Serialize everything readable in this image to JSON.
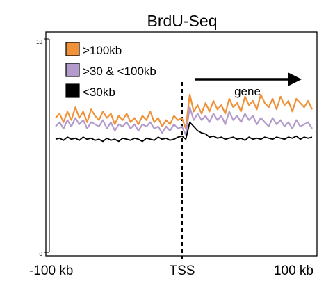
{
  "chart_data": {
    "type": "line",
    "title": "BrdU-Seq",
    "xlabel": "",
    "ylabel": "",
    "xlim": [
      -100,
      100
    ],
    "ylim": [
      0,
      10
    ],
    "y_ticks": [
      "0",
      "10"
    ],
    "x_tick_labels": {
      "left": "-100 kb",
      "center": "TSS",
      "right": "100 kb"
    },
    "grid": false,
    "legend_position": "top-left",
    "series": [
      {
        "name": ">100kb",
        "color": "#f0923a",
        "values": [
          6.3,
          6.5,
          6.1,
          6.6,
          6.2,
          6.8,
          6.3,
          6.6,
          6.1,
          6.7,
          6.4,
          6.2,
          6.6,
          6.3,
          6.5,
          6.0,
          6.4,
          6.2,
          6.5,
          6.1,
          6.3,
          6.0,
          6.4,
          6.2,
          6.6,
          6.1,
          6.3,
          5.9,
          6.2,
          6.0,
          6.4,
          6.2,
          6.3,
          5.8,
          7.4,
          6.6,
          6.9,
          6.5,
          7.0,
          6.6,
          7.1,
          6.7,
          6.9,
          6.5,
          7.2,
          6.8,
          7.0,
          6.6,
          7.3,
          6.9,
          7.1,
          6.7,
          7.4,
          7.0,
          6.8,
          7.2,
          6.7,
          7.3,
          6.9,
          7.1,
          6.6,
          7.2,
          7.0,
          6.8,
          7.1,
          6.7
        ]
      },
      {
        "name": ">30 & <100kb",
        "color": "#b39ccc",
        "values": [
          5.9,
          6.1,
          5.8,
          6.2,
          5.9,
          6.3,
          6.0,
          6.2,
          5.8,
          6.1,
          6.0,
          5.9,
          6.2,
          5.8,
          6.1,
          5.7,
          6.0,
          5.9,
          6.1,
          5.8,
          6.0,
          5.7,
          6.0,
          5.9,
          6.1,
          5.8,
          5.9,
          5.6,
          5.9,
          5.7,
          6.0,
          5.8,
          5.9,
          5.5,
          6.8,
          6.2,
          6.5,
          6.2,
          6.4,
          6.1,
          6.5,
          6.2,
          6.4,
          6.0,
          6.6,
          6.2,
          6.4,
          6.1,
          6.5,
          6.2,
          6.4,
          6.0,
          6.3,
          6.1,
          5.9,
          6.3,
          6.0,
          6.2,
          5.9,
          6.1,
          5.8,
          6.2,
          5.9,
          6.0,
          6.1,
          5.8
        ]
      },
      {
        "name": "<30kb",
        "color": "#000000",
        "values": [
          5.3,
          5.35,
          5.25,
          5.4,
          5.3,
          5.35,
          5.25,
          5.4,
          5.3,
          5.35,
          5.25,
          5.3,
          5.2,
          5.35,
          5.25,
          5.3,
          5.2,
          5.35,
          5.3,
          5.25,
          5.35,
          5.3,
          5.2,
          5.35,
          5.3,
          5.25,
          5.4,
          5.3,
          5.35,
          5.25,
          5.3,
          5.4,
          5.45,
          5.3,
          6.1,
          5.9,
          5.7,
          5.6,
          5.55,
          5.4,
          5.45,
          5.35,
          5.4,
          5.3,
          5.35,
          5.4,
          5.3,
          5.35,
          5.25,
          5.4,
          5.3,
          5.35,
          5.3,
          5.4,
          5.35,
          5.3,
          5.4,
          5.35,
          5.3,
          5.4,
          5.35,
          5.45,
          5.3,
          5.4,
          5.35,
          5.4
        ]
      }
    ],
    "annotations": {
      "tss_line_x": 0,
      "arrow_label": "gene"
    }
  }
}
